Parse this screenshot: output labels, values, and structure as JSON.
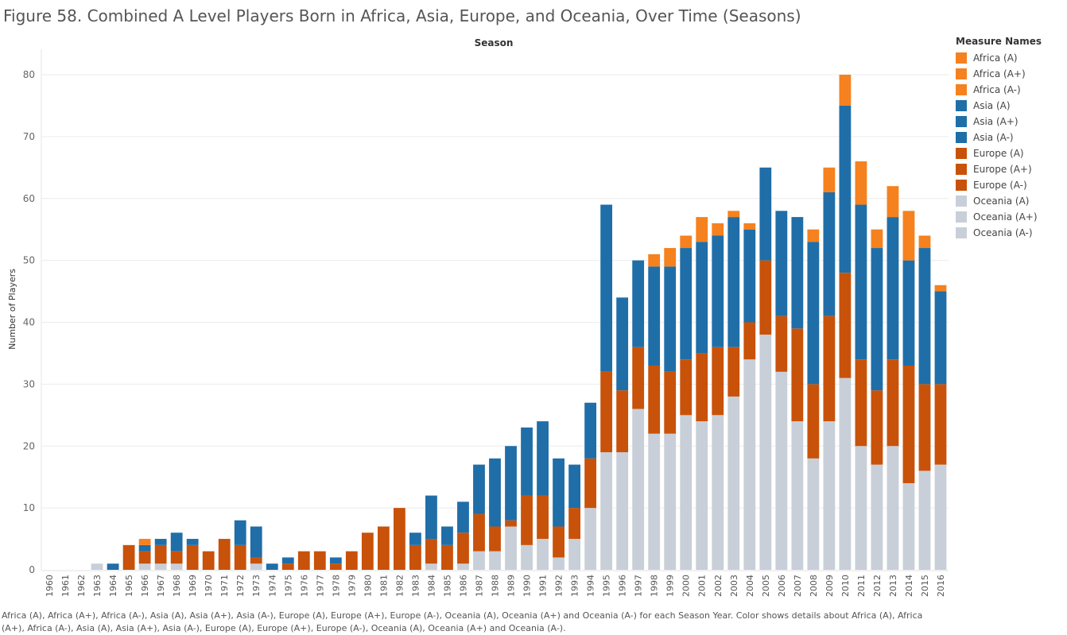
{
  "title": "Figure 58. Combined A Level Players Born in Africa, Asia, Europe, and Oceania, Over Time (Seasons)",
  "caption": "Africa (A), Africa (A+), Africa (A-), Asia (A), Asia (A+), Asia (A-), Europe (A), Europe (A+), Europe (A-), Oceania (A), Oceania (A+) and Oceania (A-) for each Season Year.  Color shows details about Africa (A), Africa (A+), Africa (A-), Asia (A), Asia (A+), Asia (A-), Europe (A), Europe (A+), Europe (A-), Oceania (A), Oceania (A+) and Oceania (A-).",
  "legend": {
    "title": "Measure Names",
    "items": [
      {
        "label": "Africa (A)",
        "color": "#f5811f"
      },
      {
        "label": "Africa (A+)",
        "color": "#f5811f"
      },
      {
        "label": "Africa (A-)",
        "color": "#f5811f"
      },
      {
        "label": "Asia (A)",
        "color": "#1f6ea8"
      },
      {
        "label": "Asia (A+)",
        "color": "#1f6ea8"
      },
      {
        "label": "Asia (A-)",
        "color": "#1f6ea8"
      },
      {
        "label": "Europe (A)",
        "color": "#c8520a"
      },
      {
        "label": "Europe (A+)",
        "color": "#c8520a"
      },
      {
        "label": "Europe (A-)",
        "color": "#c8520a"
      },
      {
        "label": "Oceania (A)",
        "color": "#c9cfd8"
      },
      {
        "label": "Oceania (A+)",
        "color": "#c9cfd8"
      },
      {
        "label": "Oceania (A-)",
        "color": "#c9cfd8"
      }
    ]
  },
  "chart_data": {
    "type": "bar",
    "stacked": true,
    "title": "Season",
    "xlabel": "",
    "ylabel": "Number of Players",
    "ylim": [
      0,
      80
    ],
    "yticks": [
      0,
      10,
      20,
      30,
      40,
      50,
      60,
      70,
      80
    ],
    "grid": true,
    "legend_position": "right",
    "categories": [
      "1960",
      "1961",
      "1962",
      "1963",
      "1964",
      "1965",
      "1966",
      "1967",
      "1968",
      "1969",
      "1970",
      "1971",
      "1972",
      "1973",
      "1974",
      "1975",
      "1976",
      "1977",
      "1978",
      "1979",
      "1980",
      "1981",
      "1982",
      "1983",
      "1984",
      "1985",
      "1986",
      "1987",
      "1988",
      "1989",
      "1990",
      "1991",
      "1992",
      "1993",
      "1994",
      "1995",
      "1996",
      "1997",
      "1998",
      "1999",
      "2000",
      "2001",
      "2002",
      "2003",
      "2004",
      "2005",
      "2006",
      "2007",
      "2008",
      "2009",
      "2010",
      "2011",
      "2012",
      "2013",
      "2014",
      "2015",
      "2016"
    ],
    "series": [
      {
        "name": "Oceania",
        "color": "#c9cfd8",
        "values": [
          0,
          0,
          0,
          1,
          0,
          0,
          1,
          1,
          1,
          0,
          0,
          0,
          0,
          1,
          0,
          0,
          0,
          0,
          0,
          0,
          0,
          0,
          0,
          0,
          1,
          0,
          1,
          3,
          3,
          7,
          4,
          5,
          2,
          5,
          10,
          19,
          19,
          26,
          22,
          22,
          25,
          24,
          25,
          28,
          34,
          38,
          32,
          24,
          18,
          24,
          31,
          20,
          17,
          20,
          14,
          16,
          17
        ]
      },
      {
        "name": "Europe",
        "color": "#c8520a",
        "values": [
          0,
          0,
          0,
          0,
          0,
          4,
          2,
          3,
          2,
          4,
          3,
          5,
          4,
          1,
          0,
          1,
          3,
          3,
          1,
          3,
          6,
          7,
          10,
          4,
          4,
          4,
          5,
          6,
          4,
          1,
          8,
          7,
          5,
          5,
          8,
          13,
          10,
          10,
          11,
          10,
          9,
          11,
          11,
          8,
          6,
          12,
          9,
          15,
          12,
          17,
          17,
          14,
          12,
          14,
          19,
          14,
          13
        ]
      },
      {
        "name": "Asia",
        "color": "#1f6ea8",
        "values": [
          0,
          0,
          0,
          0,
          1,
          0,
          1,
          1,
          3,
          1,
          0,
          0,
          4,
          5,
          1,
          1,
          0,
          0,
          1,
          0,
          0,
          0,
          0,
          2,
          7,
          3,
          5,
          8,
          11,
          12,
          11,
          12,
          11,
          7,
          9,
          27,
          15,
          14,
          16,
          17,
          18,
          18,
          18,
          21,
          15,
          15,
          17,
          18,
          23,
          20,
          27,
          25,
          23,
          23,
          17,
          22,
          15
        ]
      },
      {
        "name": "Africa",
        "color": "#f5811f",
        "values": [
          0,
          0,
          0,
          0,
          0,
          0,
          1,
          0,
          0,
          0,
          0,
          0,
          0,
          0,
          0,
          0,
          0,
          0,
          0,
          0,
          0,
          0,
          0,
          0,
          0,
          0,
          0,
          0,
          0,
          0,
          0,
          0,
          0,
          0,
          0,
          0,
          0,
          0,
          2,
          3,
          2,
          4,
          2,
          1,
          1,
          0,
          0,
          0,
          2,
          4,
          5,
          7,
          3,
          5,
          8,
          2,
          1
        ]
      }
    ]
  }
}
